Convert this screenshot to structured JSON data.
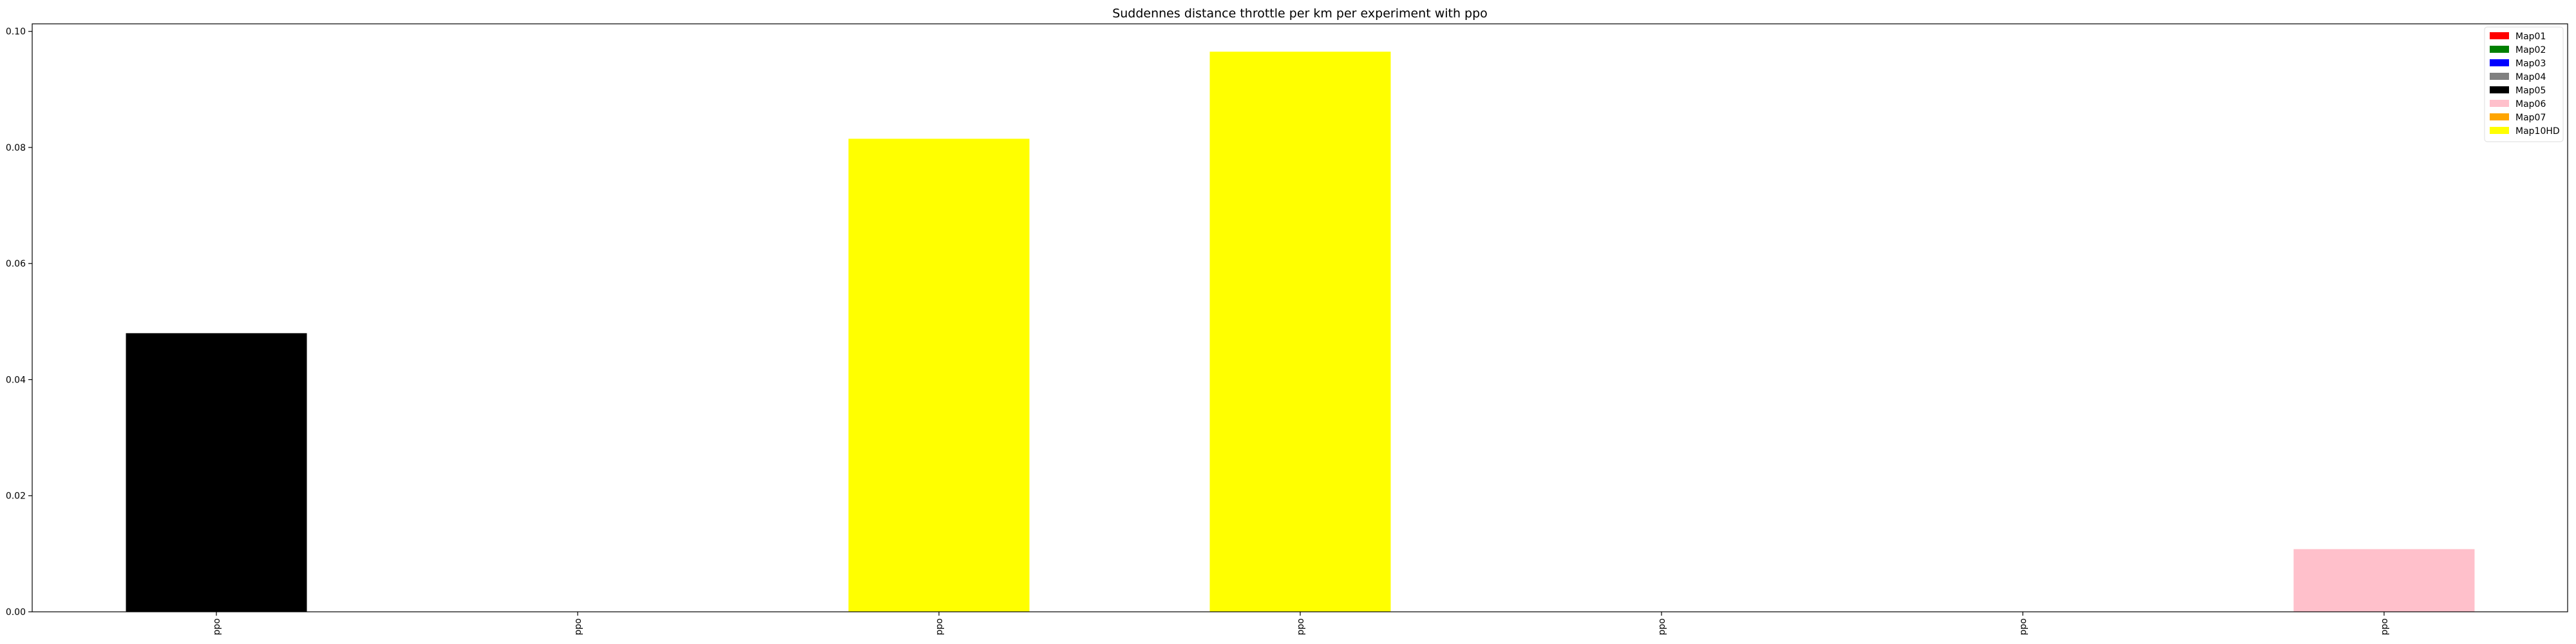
{
  "chart_data": {
    "type": "bar",
    "title": "Suddennes distance throttle per km per experiment with ppo",
    "xlabel": "",
    "ylabel": "",
    "categories": [
      "ppo",
      "ppo",
      "ppo",
      "ppo",
      "ppo",
      "ppo",
      "ppo"
    ],
    "values": [
      0.048,
      0,
      0.0815,
      0.0965,
      0,
      0,
      0.0108
    ],
    "bar_colors": [
      "#000000",
      "#ffffff",
      "#ffff00",
      "#ffff00",
      "#ffffff",
      "#ffffff",
      "#ffc0cb"
    ],
    "ylim": [
      0,
      0.1013
    ],
    "yticks": [
      0.0,
      0.02,
      0.04,
      0.06,
      0.08,
      0.1
    ],
    "ytick_labels": [
      "0.00",
      "0.02",
      "0.04",
      "0.06",
      "0.08",
      "0.10"
    ],
    "grid": false,
    "legend_position": "top-right",
    "legend": [
      {
        "label": "Map01",
        "color": "#ff0000"
      },
      {
        "label": "Map02",
        "color": "#008000"
      },
      {
        "label": "Map03",
        "color": "#0000ff"
      },
      {
        "label": "Map04",
        "color": "#808080"
      },
      {
        "label": "Map05",
        "color": "#000000"
      },
      {
        "label": "Map06",
        "color": "#ffc0cb"
      },
      {
        "label": "Map07",
        "color": "#ffa500"
      },
      {
        "label": "Map10HD",
        "color": "#ffff00"
      }
    ]
  }
}
